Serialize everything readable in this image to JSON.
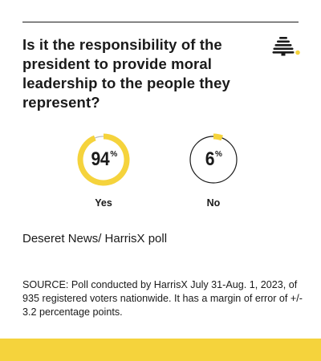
{
  "question": "Is it the responsibility of the president to provide moral leadership to the people they represent?",
  "poll_name": "Deseret News/ HarrisX poll",
  "source": "SOURCE: Poll conducted by HarrisX July 31-Aug. 1, 2023, of 935 registered voters nationwide. It has a margin of error of +/- 3.2 percentage points.",
  "percent_sign": "%",
  "icons": {
    "logo": "beehive-icon"
  },
  "colors": {
    "accent": "#f5d33c",
    "ring_track": "#bdbdbd",
    "text": "#1a1a1a"
  },
  "chart_data": {
    "type": "pie",
    "title": "Is it the responsibility of the president to provide moral leadership to the people they represent?",
    "categories": [
      "Yes",
      "No"
    ],
    "values": [
      94,
      6
    ],
    "display_values": [
      "94",
      "6"
    ],
    "unit": "%"
  }
}
